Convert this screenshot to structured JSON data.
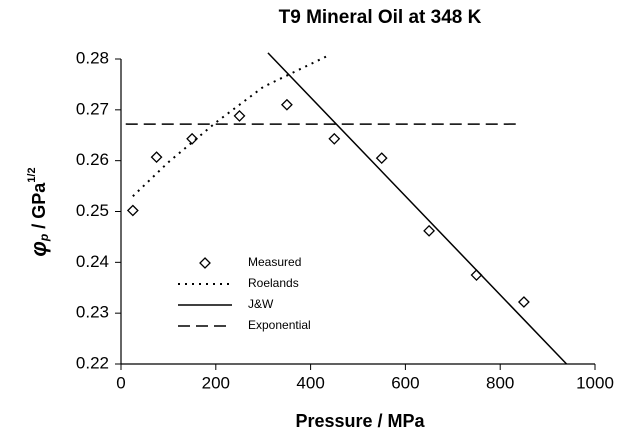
{
  "chart_data": {
    "type": "scatter",
    "title": "T9 Mineral Oil at 348 K",
    "xlabel": "Pressure / MPa",
    "ylabel": {
      "symbol": "φ",
      "subscript": "p",
      "unit": " / GPa",
      "superscript": "1/2"
    },
    "xlim": [
      0,
      1000
    ],
    "xticks": [
      0,
      200,
      400,
      600,
      800,
      1000
    ],
    "ylim": [
      0.22,
      0.28
    ],
    "yticks": [
      0.22,
      0.23,
      0.24,
      0.25,
      0.26,
      0.27,
      0.28
    ],
    "legend": "lower left",
    "series": [
      {
        "name": "Measured",
        "style": "marker",
        "color": "#000000",
        "x": [
          25,
          75,
          150,
          250,
          350,
          450,
          550,
          650,
          750,
          850
        ],
        "values": [
          0.2502,
          0.2607,
          0.2643,
          0.2688,
          0.271,
          0.2643,
          0.2605,
          0.2462,
          0.2375,
          0.2322
        ]
      },
      {
        "name": "Roelands",
        "style": "dotted",
        "color": "#000000",
        "x": [
          25,
          100,
          200,
          300,
          400,
          440
        ],
        "values": [
          0.253,
          0.2597,
          0.2675,
          0.2745,
          0.279,
          0.2808
        ]
      },
      {
        "name": "J&W",
        "style": "solid",
        "color": "#000000",
        "x": [
          310,
          940
        ],
        "values": [
          0.2812,
          0.22
        ]
      },
      {
        "name": "Exponential",
        "style": "dashed",
        "color": "#000000",
        "x": [
          10,
          840
        ],
        "values": [
          0.2672,
          0.2672
        ]
      }
    ]
  }
}
